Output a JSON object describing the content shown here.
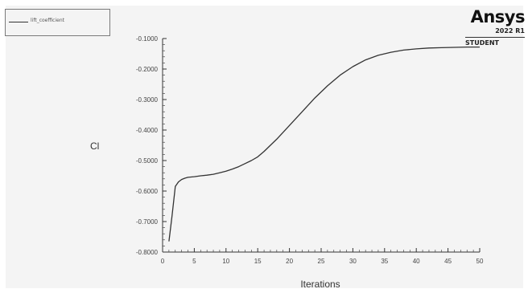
{
  "brand": {
    "name": "Ansys",
    "version": "2022 R1",
    "edition": "STUDENT"
  },
  "colors": {
    "series": "#333333",
    "axis": "#333333",
    "panel": "#f4f4f4"
  },
  "chart_data": {
    "type": "line",
    "title": "",
    "xlabel": "Iterations",
    "ylabel": "Cl",
    "xlim": [
      0,
      50
    ],
    "ylim": [
      -0.8,
      -0.1
    ],
    "grid": false,
    "legend_position": "top-left",
    "xticks": [
      "0",
      "5",
      "10",
      "15",
      "20",
      "25",
      "30",
      "35",
      "40",
      "45",
      "50"
    ],
    "yticks": [
      "-0.1000",
      "-0.2000",
      "-0.3000",
      "-0.4000",
      "-0.5000",
      "-0.6000",
      "-0.7000",
      "-0.8000"
    ],
    "series": [
      {
        "name": "lift_coefficient",
        "x": [
          1,
          1.5,
          2,
          2.5,
          3,
          3.5,
          4,
          5,
          6,
          7,
          8,
          9,
          10,
          11,
          12,
          13,
          14,
          15,
          16,
          18,
          20,
          22,
          24,
          26,
          28,
          30,
          32,
          34,
          36,
          38,
          40,
          42,
          44,
          46,
          48,
          50
        ],
        "y": [
          -0.765,
          -0.68,
          -0.585,
          -0.57,
          -0.562,
          -0.558,
          -0.555,
          -0.553,
          -0.55,
          -0.548,
          -0.545,
          -0.54,
          -0.535,
          -0.528,
          -0.52,
          -0.51,
          -0.5,
          -0.488,
          -0.47,
          -0.43,
          -0.385,
          -0.34,
          -0.295,
          -0.255,
          -0.22,
          -0.192,
          -0.17,
          -0.155,
          -0.145,
          -0.138,
          -0.134,
          -0.131,
          -0.13,
          -0.129,
          -0.128,
          -0.128
        ]
      }
    ]
  }
}
